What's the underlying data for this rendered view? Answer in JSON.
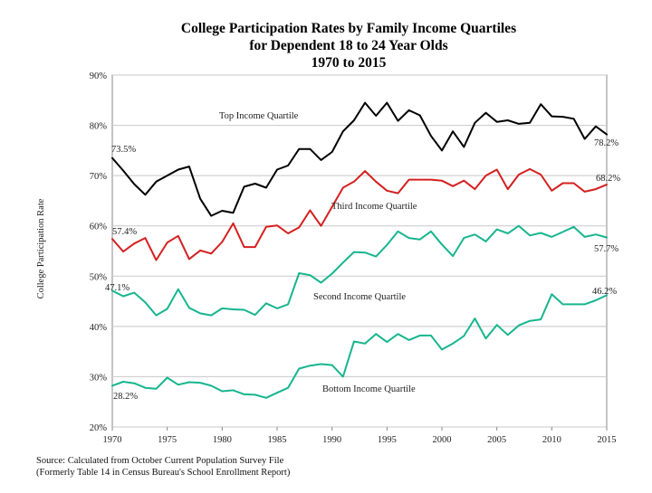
{
  "chart_data": {
    "type": "line",
    "title": [
      "College Participation Rates by Family Income Quartiles",
      "for Dependent 18 to 24 Year Olds",
      "1970 to 2015"
    ],
    "xlabel": "",
    "ylabel": "College Participation Rate",
    "xlim": [
      1970,
      2015
    ],
    "ylim": [
      20,
      90
    ],
    "x_ticks": [
      1970,
      1975,
      1980,
      1985,
      1990,
      1995,
      2000,
      2005,
      2010,
      2015
    ],
    "y_ticks": [
      20,
      30,
      40,
      50,
      60,
      70,
      80,
      90
    ],
    "y_tick_labels": [
      "20%",
      "30%",
      "40%",
      "50%",
      "60%",
      "70%",
      "80%",
      "90%"
    ],
    "grid": "horizontal",
    "x": [
      1970,
      1971,
      1972,
      1973,
      1974,
      1975,
      1976,
      1977,
      1978,
      1979,
      1980,
      1981,
      1982,
      1983,
      1984,
      1985,
      1986,
      1987,
      1988,
      1989,
      1990,
      1991,
      1992,
      1993,
      1994,
      1995,
      1996,
      1997,
      1998,
      1999,
      2000,
      2001,
      2002,
      2003,
      2004,
      2005,
      2006,
      2007,
      2008,
      2009,
      2010,
      2011,
      2012,
      2013,
      2014,
      2015
    ],
    "series": [
      {
        "name": "Top Income Quartile",
        "color": "#000000",
        "start_label": "73.5%",
        "end_label": "78.2%",
        "values": [
          73.5,
          71.0,
          68.3,
          66.2,
          68.8,
          70.0,
          71.2,
          71.8,
          65.4,
          62.0,
          63.0,
          62.6,
          67.8,
          68.4,
          67.6,
          71.2,
          72.0,
          75.3,
          75.3,
          73.1,
          74.7,
          78.8,
          81.0,
          84.5,
          81.9,
          84.5,
          80.9,
          83.0,
          82.0,
          77.9,
          75.0,
          78.8,
          75.7,
          80.5,
          82.5,
          80.7,
          81.0,
          80.3,
          80.5,
          84.2,
          81.8,
          81.7,
          81.3,
          77.3,
          79.8,
          78.2
        ]
      },
      {
        "name": "Third Income Quartile",
        "color": "#d42020",
        "start_label": "57.4%",
        "end_label": "68.2%",
        "values": [
          57.4,
          54.9,
          56.5,
          57.6,
          53.2,
          56.7,
          58.0,
          53.4,
          55.1,
          54.5,
          56.8,
          60.5,
          55.8,
          55.8,
          59.8,
          60.1,
          58.5,
          59.7,
          63.1,
          60.0,
          63.8,
          67.6,
          68.8,
          70.9,
          68.8,
          67.0,
          66.5,
          69.2,
          69.2,
          69.2,
          69.0,
          67.9,
          69.0,
          67.3,
          70.0,
          71.2,
          67.3,
          70.2,
          71.3,
          70.2,
          67.0,
          68.5,
          68.5,
          66.8,
          67.3,
          68.2
        ]
      },
      {
        "name": "Second Income Quartile",
        "color": "#17b58f",
        "start_label": "47.1%",
        "end_label": "57.7%",
        "values": [
          47.1,
          46.0,
          46.7,
          44.8,
          42.2,
          43.5,
          47.4,
          43.7,
          42.6,
          42.2,
          43.6,
          43.4,
          43.3,
          42.3,
          44.6,
          43.6,
          44.4,
          50.6,
          50.2,
          48.7,
          50.5,
          52.7,
          54.8,
          54.7,
          53.9,
          56.2,
          58.9,
          57.6,
          57.3,
          58.9,
          56.3,
          54.0,
          57.6,
          58.3,
          56.9,
          59.3,
          58.5,
          60.0,
          58.1,
          58.6,
          57.8,
          58.8,
          59.8,
          57.8,
          58.3,
          57.7
        ]
      },
      {
        "name": "Bottom Income Quartile",
        "color": "#17b58f",
        "start_label": "28.2%",
        "end_label": "46.2%",
        "values": [
          28.2,
          29.0,
          28.7,
          27.8,
          27.6,
          29.8,
          28.4,
          28.9,
          28.8,
          28.2,
          27.1,
          27.3,
          26.5,
          26.4,
          25.8,
          26.8,
          27.8,
          31.6,
          32.2,
          32.5,
          32.3,
          30.0,
          37.0,
          36.6,
          38.5,
          36.9,
          38.5,
          37.3,
          38.2,
          38.2,
          35.4,
          36.6,
          38.1,
          41.6,
          37.6,
          40.3,
          38.3,
          40.2,
          41.1,
          41.4,
          46.4,
          44.4,
          44.4,
          44.4,
          45.2,
          46.2
        ]
      }
    ],
    "annotations": [
      "Top Income Quartile",
      "Third Income Quartile",
      "Second Income Quartile",
      "Bottom Income Quartile"
    ],
    "source": [
      "Source: Calculated from October Current Population Survey File",
      "(Formerly Table 14 in Census Bureau's School Enrollment Report)"
    ]
  }
}
